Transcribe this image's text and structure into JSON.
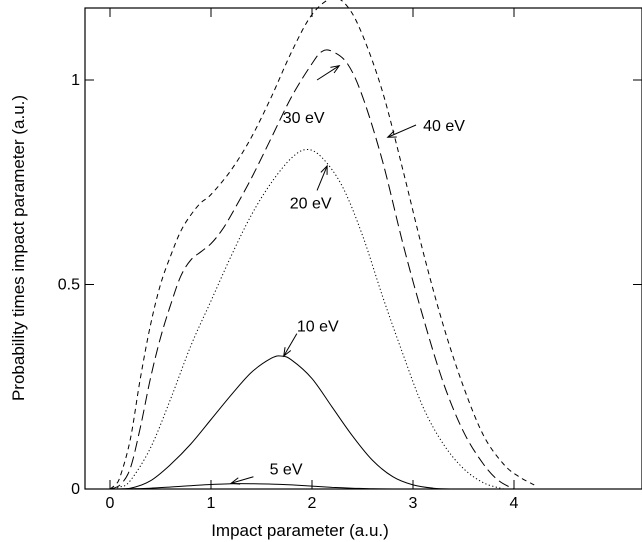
{
  "chart_data": {
    "type": "line",
    "title": "",
    "xlabel": "Impact parameter (a.u.)",
    "ylabel": "Probability times impact parameter (a.u.)",
    "xlim": [
      0,
      4.45
    ],
    "ylim": [
      0,
      1.25
    ],
    "xticks": [
      0,
      1,
      2,
      3,
      4
    ],
    "xtick_labels": [
      "0",
      "1",
      "2",
      "3",
      "4"
    ],
    "yticks": [
      0,
      0.5,
      1
    ],
    "ytick_labels": [
      "0",
      "0.5",
      "1"
    ],
    "grid": false,
    "legend": "none (curves labeled by arrows)",
    "series": [
      {
        "name": "5 eV",
        "style": "solid",
        "points": [
          [
            0.0,
            0.0
          ],
          [
            0.2,
            0.0005
          ],
          [
            0.4,
            0.002
          ],
          [
            0.6,
            0.005
          ],
          [
            0.8,
            0.008
          ],
          [
            1.0,
            0.011
          ],
          [
            1.2,
            0.013
          ],
          [
            1.4,
            0.013
          ],
          [
            1.6,
            0.012
          ],
          [
            1.8,
            0.01
          ],
          [
            2.0,
            0.007
          ],
          [
            2.2,
            0.004
          ],
          [
            2.4,
            0.002
          ],
          [
            2.6,
            0.0005
          ],
          [
            2.8,
            0.0
          ]
        ]
      },
      {
        "name": "10 eV",
        "style": "solid",
        "points": [
          [
            0.0,
            0.0
          ],
          [
            0.2,
            0.002
          ],
          [
            0.4,
            0.02
          ],
          [
            0.6,
            0.06
          ],
          [
            0.8,
            0.11
          ],
          [
            1.0,
            0.17
          ],
          [
            1.2,
            0.23
          ],
          [
            1.4,
            0.285
          ],
          [
            1.6,
            0.32
          ],
          [
            1.7,
            0.325
          ],
          [
            1.8,
            0.315
          ],
          [
            2.0,
            0.27
          ],
          [
            2.2,
            0.2
          ],
          [
            2.4,
            0.13
          ],
          [
            2.6,
            0.07
          ],
          [
            2.8,
            0.03
          ],
          [
            3.0,
            0.01
          ],
          [
            3.2,
            0.002
          ],
          [
            3.4,
            0.0
          ]
        ]
      },
      {
        "name": "20 eV",
        "style": "dotted",
        "points": [
          [
            0.0,
            0.0
          ],
          [
            0.1,
            0.005
          ],
          [
            0.2,
            0.02
          ],
          [
            0.4,
            0.1
          ],
          [
            0.6,
            0.22
          ],
          [
            0.8,
            0.35
          ],
          [
            1.0,
            0.46
          ],
          [
            1.2,
            0.57
          ],
          [
            1.4,
            0.67
          ],
          [
            1.6,
            0.75
          ],
          [
            1.8,
            0.81
          ],
          [
            1.95,
            0.83
          ],
          [
            2.1,
            0.81
          ],
          [
            2.3,
            0.74
          ],
          [
            2.5,
            0.62
          ],
          [
            2.7,
            0.47
          ],
          [
            2.9,
            0.33
          ],
          [
            3.1,
            0.2
          ],
          [
            3.3,
            0.11
          ],
          [
            3.5,
            0.05
          ],
          [
            3.7,
            0.015
          ],
          [
            3.9,
            0.0
          ]
        ]
      },
      {
        "name": "30 eV",
        "style": "long-dash",
        "points": [
          [
            0.0,
            0.0
          ],
          [
            0.1,
            0.01
          ],
          [
            0.2,
            0.05
          ],
          [
            0.3,
            0.15
          ],
          [
            0.4,
            0.27
          ],
          [
            0.5,
            0.37
          ],
          [
            0.6,
            0.45
          ],
          [
            0.7,
            0.52
          ],
          [
            0.8,
            0.56
          ],
          [
            0.9,
            0.58
          ],
          [
            1.0,
            0.6
          ],
          [
            1.1,
            0.63
          ],
          [
            1.2,
            0.67
          ],
          [
            1.4,
            0.76
          ],
          [
            1.6,
            0.86
          ],
          [
            1.8,
            0.96
          ],
          [
            2.0,
            1.04
          ],
          [
            2.1,
            1.07
          ],
          [
            2.2,
            1.07
          ],
          [
            2.35,
            1.04
          ],
          [
            2.5,
            0.96
          ],
          [
            2.7,
            0.8
          ],
          [
            2.9,
            0.6
          ],
          [
            3.1,
            0.42
          ],
          [
            3.3,
            0.26
          ],
          [
            3.5,
            0.14
          ],
          [
            3.7,
            0.06
          ],
          [
            3.85,
            0.02
          ],
          [
            4.0,
            0.0
          ]
        ]
      },
      {
        "name": "40 eV",
        "style": "short-dash",
        "points": [
          [
            0.0,
            0.0
          ],
          [
            0.05,
            0.01
          ],
          [
            0.1,
            0.03
          ],
          [
            0.2,
            0.12
          ],
          [
            0.3,
            0.27
          ],
          [
            0.4,
            0.4
          ],
          [
            0.5,
            0.5
          ],
          [
            0.6,
            0.57
          ],
          [
            0.7,
            0.63
          ],
          [
            0.8,
            0.67
          ],
          [
            0.9,
            0.7
          ],
          [
            1.0,
            0.72
          ],
          [
            1.2,
            0.78
          ],
          [
            1.4,
            0.86
          ],
          [
            1.6,
            0.96
          ],
          [
            1.8,
            1.07
          ],
          [
            2.0,
            1.16
          ],
          [
            2.2,
            1.2
          ],
          [
            2.35,
            1.18
          ],
          [
            2.5,
            1.11
          ],
          [
            2.7,
            0.97
          ],
          [
            2.9,
            0.78
          ],
          [
            3.1,
            0.58
          ],
          [
            3.3,
            0.4
          ],
          [
            3.5,
            0.25
          ],
          [
            3.7,
            0.13
          ],
          [
            3.9,
            0.06
          ],
          [
            4.05,
            0.03
          ],
          [
            4.2,
            0.01
          ]
        ]
      }
    ],
    "annotations": [
      {
        "text": "5 eV",
        "label_at": [
          1.58,
          0.05
        ],
        "arrow_from": [
          1.42,
          0.03
        ],
        "arrow_to": [
          1.2,
          0.014
        ]
      },
      {
        "text": "10 eV",
        "label_at": [
          1.85,
          0.4
        ],
        "arrow_from": [
          1.85,
          0.38
        ],
        "arrow_to": [
          1.72,
          0.325
        ]
      },
      {
        "text": "20 eV",
        "label_at": [
          1.78,
          0.7
        ],
        "arrow_from": [
          2.05,
          0.73
        ],
        "arrow_to": [
          2.15,
          0.79
        ]
      },
      {
        "text": "30 eV",
        "label_at": [
          1.71,
          0.91
        ],
        "arrow_from": [
          2.05,
          1.0
        ],
        "arrow_to": [
          2.27,
          1.035
        ]
      },
      {
        "text": "40 eV",
        "label_at": [
          3.1,
          0.89
        ],
        "arrow_from": [
          3.03,
          0.89
        ],
        "arrow_to": [
          2.75,
          0.86
        ]
      }
    ]
  }
}
